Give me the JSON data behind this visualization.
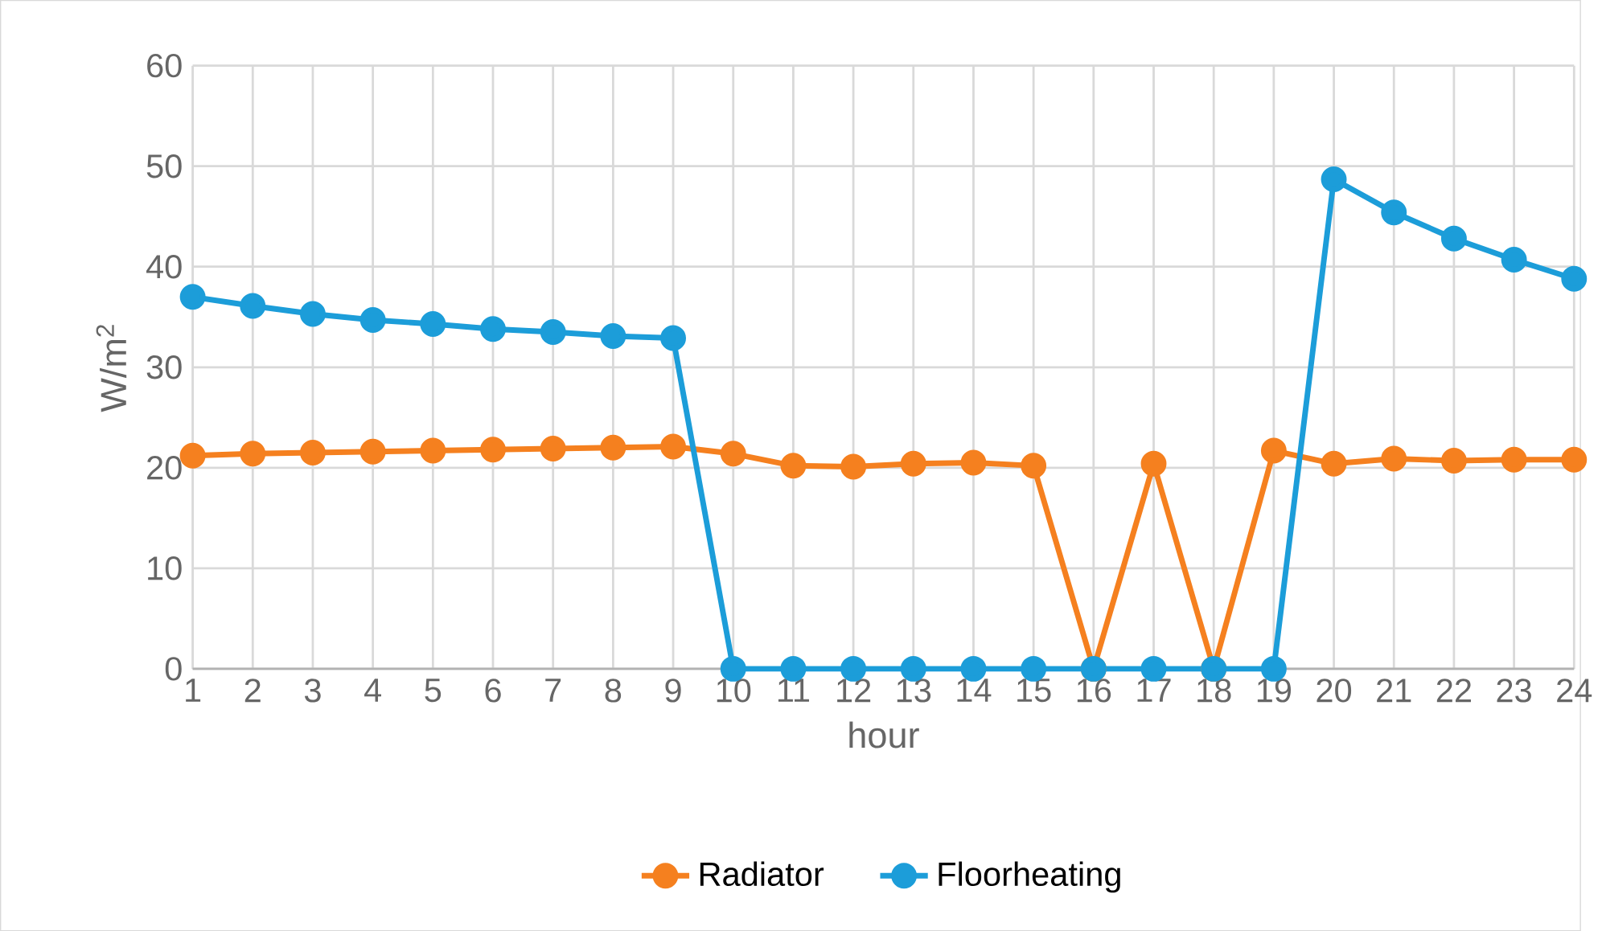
{
  "chart_data": {
    "type": "line",
    "xlabel": "hour",
    "ylabel": "W/m$^{2}$",
    "categories": [
      "1",
      "2",
      "3",
      "4",
      "5",
      "6",
      "7",
      "8",
      "9",
      "10",
      "11",
      "12",
      "13",
      "14",
      "15",
      "16",
      "17",
      "18",
      "19",
      "20",
      "21",
      "22",
      "23",
      "24"
    ],
    "series": [
      {
        "name": "Radiator",
        "color": "#f5801f",
        "values": [
          21.2,
          21.4,
          21.5,
          21.6,
          21.7,
          21.8,
          21.9,
          22.0,
          22.1,
          21.4,
          20.2,
          20.1,
          20.4,
          20.5,
          20.2,
          0,
          20.4,
          0,
          21.7,
          20.4,
          20.9,
          20.7,
          20.8,
          20.8
        ]
      },
      {
        "name": "Floorheating",
        "color": "#1c9dd9",
        "values": [
          37.0,
          36.1,
          35.3,
          34.7,
          34.3,
          33.8,
          33.5,
          33.1,
          32.9,
          0,
          0,
          0,
          0,
          0,
          0,
          0,
          0,
          0,
          0,
          48.7,
          45.4,
          42.8,
          40.7,
          38.8
        ]
      }
    ],
    "ylim": [
      0,
      60
    ],
    "yticks": [
      0,
      10,
      20,
      30,
      40,
      50,
      60
    ],
    "grid": true,
    "legend": "bottom",
    "marker": "circle",
    "line_style": "solid"
  }
}
